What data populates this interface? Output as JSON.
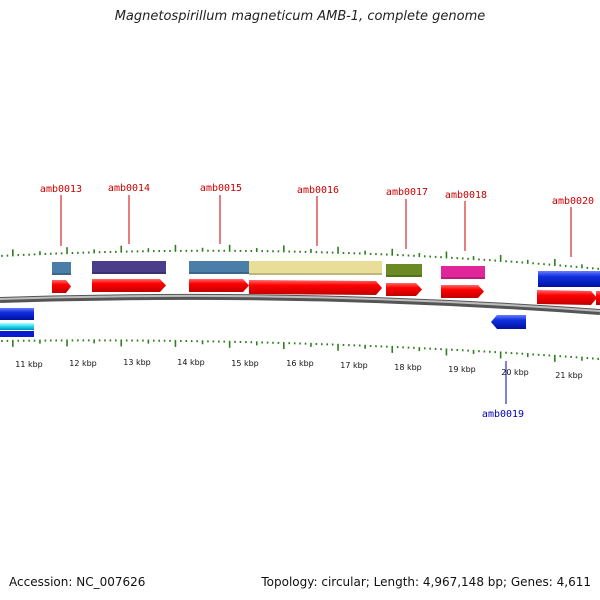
{
  "title": "Magnetospirillum magneticum AMB-1, complete genome",
  "footer": {
    "accession": "Accession: NC_007626",
    "summary": "Topology: circular; Length: 4,967,148 bp; Genes: 4,611"
  },
  "colors": {
    "forward_label": "#cc0000",
    "reverse_label": "#0000bb",
    "tick": "#2e7d1e",
    "backbone": "#8a8a8a"
  },
  "scale": {
    "labels": [
      "11 kbp",
      "12 kbp",
      "13 kbp",
      "14 kbp",
      "15 kbp",
      "16 kbp",
      "17 kbp",
      "18 kbp",
      "19 kbp",
      "20 kbp",
      "21 kbp"
    ]
  },
  "features": [
    {
      "name": "amb0013",
      "strand": "+",
      "type_color": "#4a7ea8"
    },
    {
      "name": "amb0014",
      "strand": "+",
      "type_color": "#4b3d8a"
    },
    {
      "name": "amb0015",
      "strand": "+",
      "type_color": "#4a7ea8"
    },
    {
      "name": "amb0016",
      "strand": "+",
      "type_color": "#e8de98"
    },
    {
      "name": "amb0017",
      "strand": "+",
      "type_color": "#6b8a24"
    },
    {
      "name": "amb0018",
      "strand": "+",
      "type_color": "#e0269a"
    },
    {
      "name": "amb0019",
      "strand": "-",
      "type_color": "#1a3ad0"
    },
    {
      "name": "amb0020",
      "strand": "+",
      "type_color": "#1a2ad8"
    }
  ]
}
